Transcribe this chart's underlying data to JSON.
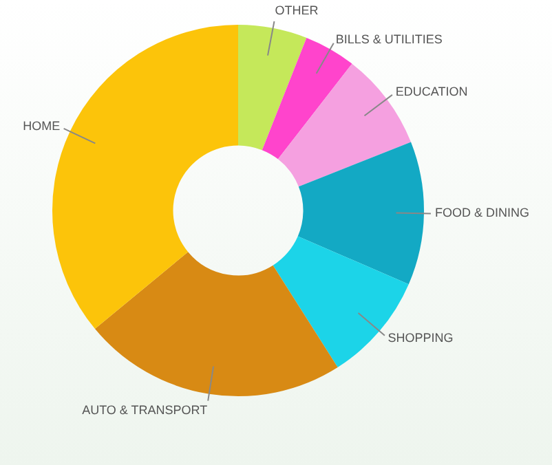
{
  "chart_data": {
    "type": "donut",
    "categories": [
      "OTHER",
      "BILLS & UTILITIES",
      "EDUCATION",
      "FOOD & DINING",
      "SHOPPING",
      "AUTO & TRANSPORT",
      "HOME"
    ],
    "values": [
      6,
      4.5,
      8.5,
      12.5,
      9.5,
      23,
      36
    ],
    "colors": [
      "#c5e85a",
      "#ff44cc",
      "#f5a0e0",
      "#13a9c4",
      "#1cd4e8",
      "#d88a14",
      "#fcc40a"
    ],
    "legend": false
  }
}
